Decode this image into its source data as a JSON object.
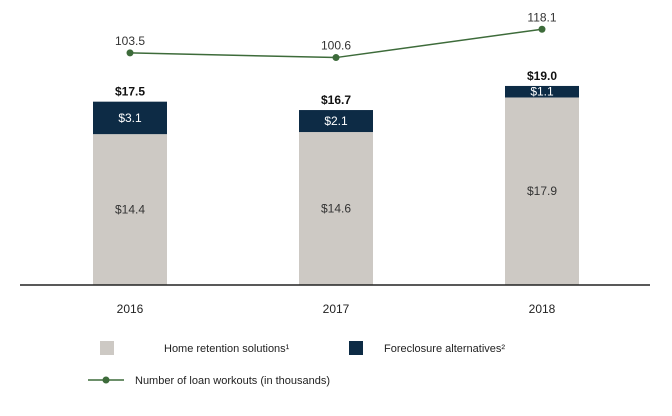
{
  "chart_data": {
    "type": "bar",
    "stacked": true,
    "categories": [
      "2016",
      "2017",
      "2018"
    ],
    "series": [
      {
        "name": "Home retention solutions¹",
        "values": [
          14.4,
          14.6,
          17.9
        ],
        "labels": [
          "$14.4",
          "$14.6",
          "$17.9"
        ],
        "color": "#cdc9c4",
        "label_color": "#333333"
      },
      {
        "name": "Foreclosure alternatives²",
        "values": [
          3.1,
          2.1,
          1.1
        ],
        "labels": [
          "$3.1",
          "$2.1",
          "$1.1"
        ],
        "color": "#0d2b45",
        "label_color": "#ffffff"
      }
    ],
    "totals": [
      "$17.5",
      "$16.7",
      "$19.0"
    ],
    "line_series": {
      "name": "Number of loan workouts (in thousands)",
      "values": [
        103.5,
        100.6,
        118.1
      ],
      "labels": [
        "103.5",
        "100.6",
        "118.1"
      ],
      "color": "#3d6b3a"
    },
    "bar_ylim": [
      0,
      21
    ],
    "line_ylim": [
      -40,
      130
    ],
    "grid": false,
    "legend_position": "bottom"
  }
}
